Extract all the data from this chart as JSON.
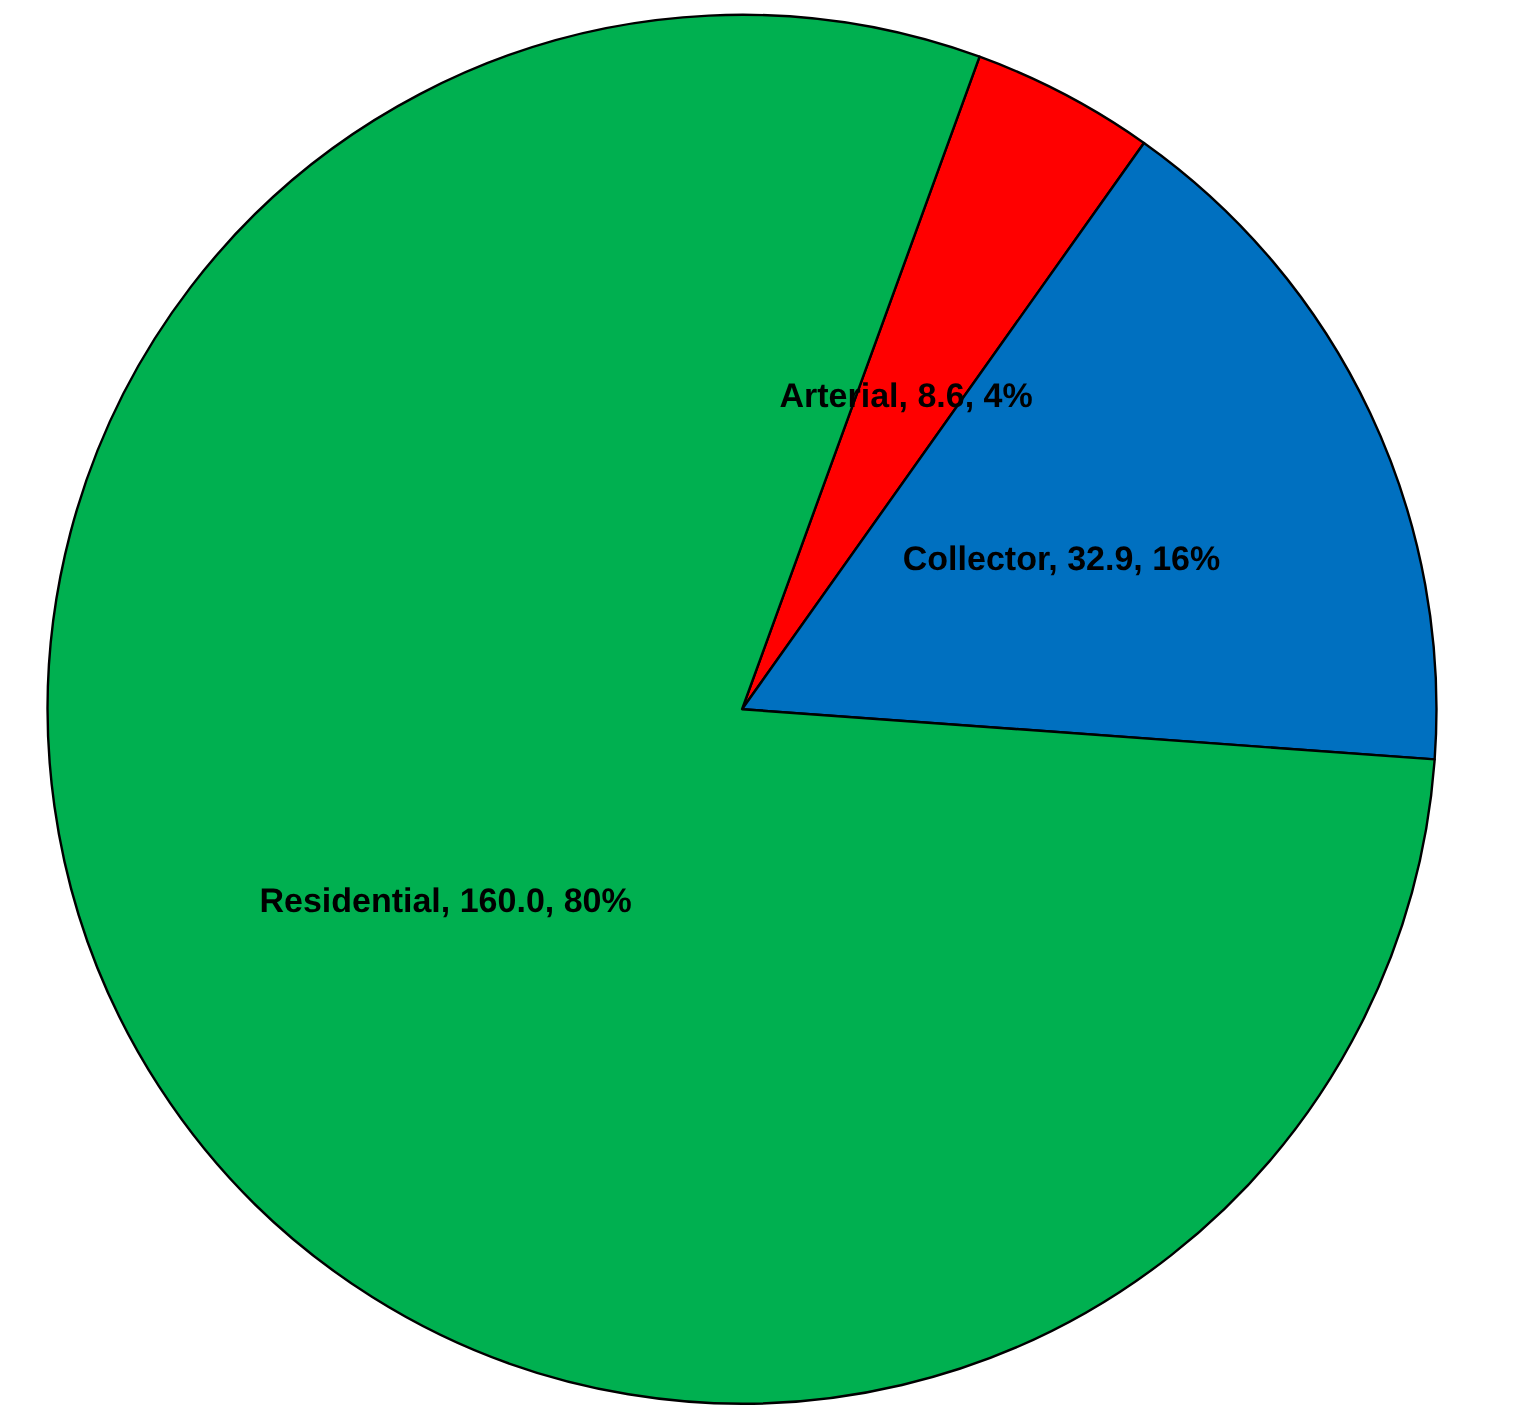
{
  "chart_data": {
    "type": "pie",
    "categories": [
      "Arterial",
      "Collector",
      "Residential"
    ],
    "values": [
      8.6,
      32.9,
      160.0
    ],
    "value_labels": [
      "8.6, 4%",
      "32.9, 16%",
      "160.0, 80%"
    ],
    "colors": [
      "#ff0000",
      "#0070c0",
      "#00b050"
    ],
    "legend": false
  }
}
